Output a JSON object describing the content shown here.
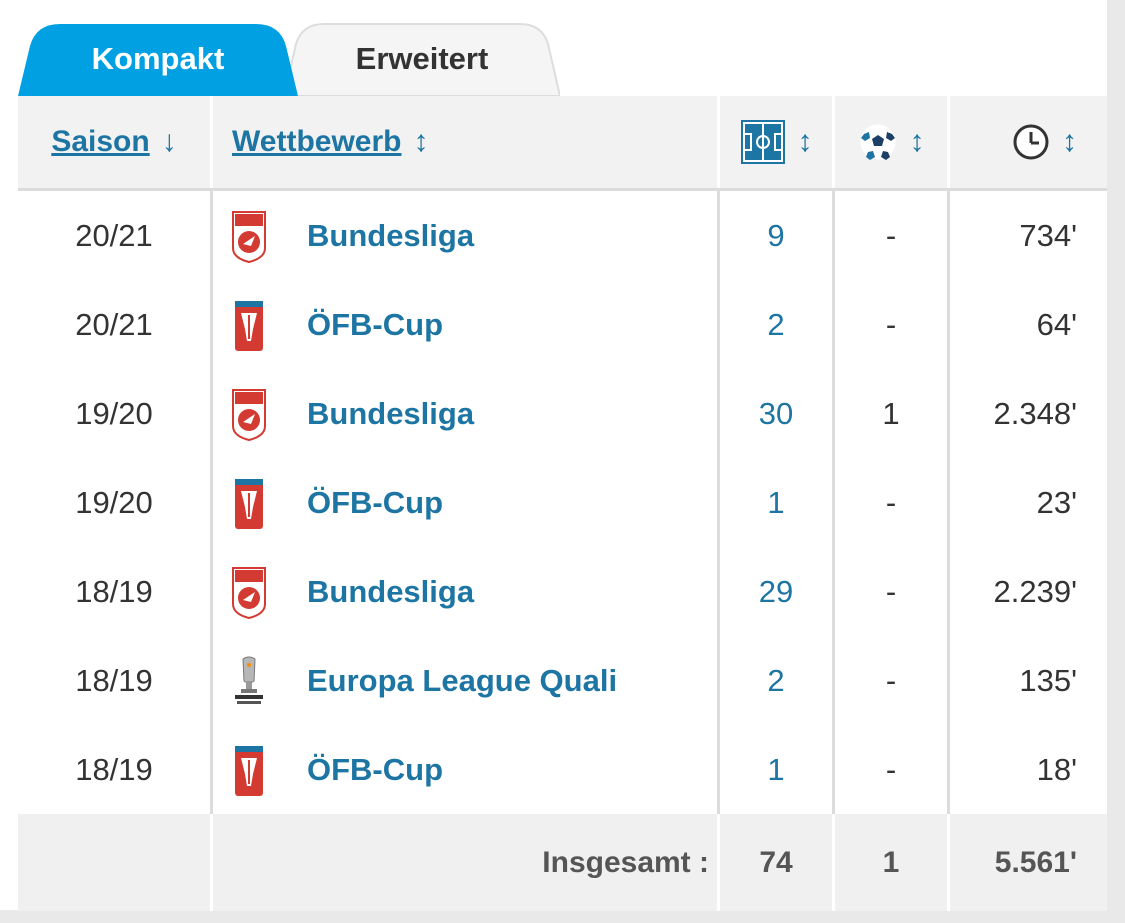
{
  "tabs": [
    {
      "label": "Kompakt",
      "active": true
    },
    {
      "label": "Erweitert",
      "active": false
    }
  ],
  "colors": {
    "accent": "#00a0e3",
    "link": "#1d75a3",
    "header_bg": "#f2f2f2"
  },
  "header": {
    "season": {
      "label": "Saison",
      "sort": "↓"
    },
    "competition": {
      "label": "Wettbewerb",
      "sort": "↕"
    },
    "apps": {
      "icon": "pitch-icon",
      "sort": "↕"
    },
    "goals": {
      "icon": "ball-icon",
      "sort": "↕"
    },
    "minutes": {
      "icon": "clock-icon",
      "sort": "↕"
    }
  },
  "rows": [
    {
      "season": "20/21",
      "competition": "Bundesliga",
      "logo": "bundesliga-logo",
      "apps": "9",
      "goals": "-",
      "minutes": "734'"
    },
    {
      "season": "20/21",
      "competition": "ÖFB-Cup",
      "logo": "oefb-cup-logo",
      "apps": "2",
      "goals": "-",
      "minutes": "64'"
    },
    {
      "season": "19/20",
      "competition": "Bundesliga",
      "logo": "bundesliga-logo",
      "apps": "30",
      "goals": "1",
      "minutes": "2.348'"
    },
    {
      "season": "19/20",
      "competition": "ÖFB-Cup",
      "logo": "oefb-cup-logo",
      "apps": "1",
      "goals": "-",
      "minutes": "23'"
    },
    {
      "season": "18/19",
      "competition": "Bundesliga",
      "logo": "bundesliga-logo",
      "apps": "29",
      "goals": "-",
      "minutes": "2.239'"
    },
    {
      "season": "18/19",
      "competition": "Europa League Quali",
      "logo": "europa-league-logo",
      "apps": "2",
      "goals": "-",
      "minutes": "135'"
    },
    {
      "season": "18/19",
      "competition": "ÖFB-Cup",
      "logo": "oefb-cup-logo",
      "apps": "1",
      "goals": "-",
      "minutes": "18'"
    }
  ],
  "footer": {
    "label": "Insgesamt :",
    "apps": "74",
    "goals": "1",
    "minutes": "5.561'"
  }
}
